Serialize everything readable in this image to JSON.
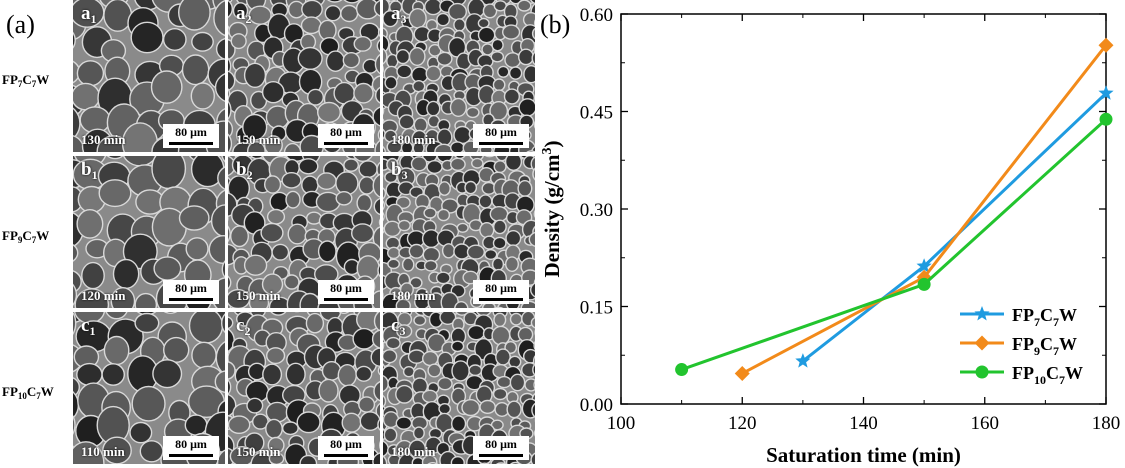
{
  "panel_a": {
    "label": "(a)",
    "rows": [
      {
        "name_base": "FP",
        "sub1": "7",
        "mid": "C",
        "sub2": "7",
        "end": "W",
        "letter": "a",
        "tiles": [
          {
            "sub": "1",
            "time": "130 min",
            "scale": "80 μm"
          },
          {
            "sub": "2",
            "time": "150 min",
            "scale": "80 μm"
          },
          {
            "sub": "3",
            "time": "180 min",
            "scale": "80 μm"
          }
        ]
      },
      {
        "name_base": "FP",
        "sub1": "9",
        "mid": "C",
        "sub2": "7",
        "end": "W",
        "letter": "b",
        "tiles": [
          {
            "sub": "1",
            "time": "120 min",
            "scale": "80 μm"
          },
          {
            "sub": "2",
            "time": "150 min",
            "scale": "80 μm"
          },
          {
            "sub": "3",
            "time": "180 min",
            "scale": "80 μm"
          }
        ]
      },
      {
        "name_base": "FP",
        "sub1": "10",
        "mid": "C",
        "sub2": "7",
        "end": "W",
        "letter": "c",
        "tiles": [
          {
            "sub": "1",
            "time": "110 min",
            "scale": "80 μm"
          },
          {
            "sub": "2",
            "time": "150 min",
            "scale": "80 μm"
          },
          {
            "sub": "3",
            "time": "180 min",
            "scale": "80 μm"
          }
        ]
      }
    ]
  },
  "chart_data": {
    "label": "(b)",
    "type": "line",
    "xlabel": "Saturation time (min)",
    "ylabel_main": "Density (g/cm",
    "ylabel_sup": "3",
    "ylabel_close": ")",
    "xlim": [
      100,
      180
    ],
    "ylim": [
      0.0,
      0.6
    ],
    "xticks": [
      "100",
      "120",
      "140",
      "160",
      "180"
    ],
    "yticks": [
      "0.00",
      "0.15",
      "0.30",
      "0.45",
      "0.60"
    ],
    "grid": false,
    "legend_position": "bottom-right",
    "series": [
      {
        "name_base": "FP",
        "sub1": "7",
        "mid": "C",
        "sub2": "7",
        "end": "W",
        "color": "#1f9be0",
        "marker": "star",
        "x": [
          130,
          150,
          180
        ],
        "y": [
          0.066,
          0.212,
          0.478
        ]
      },
      {
        "name_base": "FP",
        "sub1": "9",
        "mid": "C",
        "sub2": "7",
        "end": "W",
        "color": "#f28a1a",
        "marker": "diamond",
        "x": [
          120,
          150,
          180
        ],
        "y": [
          0.047,
          0.195,
          0.552
        ]
      },
      {
        "name_base": "FP",
        "sub1": "10",
        "mid": "C",
        "sub2": "7",
        "end": "W",
        "color": "#22c42e",
        "marker": "circle",
        "x": [
          110,
          150,
          180
        ],
        "y": [
          0.053,
          0.184,
          0.438
        ]
      }
    ]
  }
}
